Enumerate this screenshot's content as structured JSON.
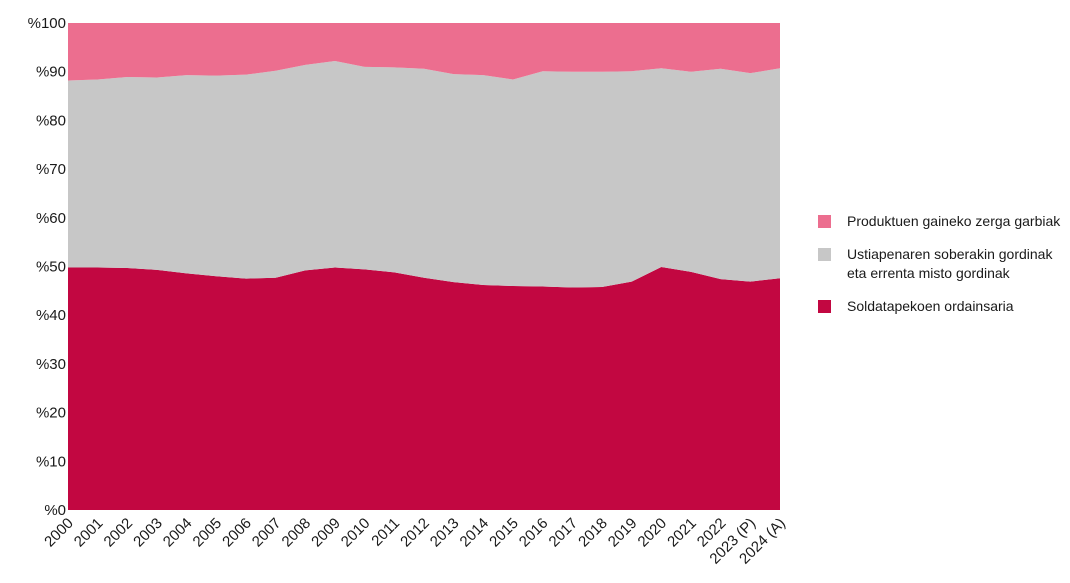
{
  "chart_data": {
    "type": "area",
    "stacked": true,
    "percent": true,
    "categories": [
      "2000",
      "2001",
      "2002",
      "2003",
      "2004",
      "2005",
      "2006",
      "2007",
      "2008",
      "2009",
      "2010",
      "2011",
      "2012",
      "2013",
      "2014",
      "2015",
      "2016",
      "2017",
      "2018",
      "2019",
      "2020",
      "2021",
      "2022",
      "2023 (P)",
      "2024 (A)"
    ],
    "series": [
      {
        "name": "Soldatapekoen ordainsaria",
        "color": "#c20741",
        "values": [
          49.8,
          49.8,
          49.7,
          49.3,
          48.6,
          48.0,
          47.5,
          47.7,
          49.2,
          49.8,
          49.4,
          48.8,
          47.7,
          46.8,
          46.2,
          46.0,
          45.9,
          45.7,
          45.8,
          46.9,
          49.9,
          48.9,
          47.4,
          46.9,
          47.6
        ]
      },
      {
        "name": "Ustiapenaren soberakin gordinak eta errenta misto gordinak",
        "color": "#c7c7c7",
        "values": [
          38.4,
          38.6,
          39.2,
          39.5,
          40.7,
          41.2,
          41.9,
          42.5,
          42.2,
          42.4,
          41.6,
          42.1,
          42.9,
          42.7,
          43.1,
          42.4,
          44.2,
          44.3,
          44.2,
          43.2,
          40.8,
          41.1,
          43.2,
          42.8,
          43.1
        ]
      },
      {
        "name": "Produktuen gaineko zerga garbiak",
        "color": "#ec6e8f",
        "values": [
          11.8,
          11.6,
          11.1,
          11.2,
          10.7,
          10.8,
          10.6,
          9.8,
          8.6,
          7.8,
          9.0,
          9.1,
          9.4,
          10.5,
          10.7,
          11.6,
          9.9,
          10.0,
          10.0,
          9.9,
          9.3,
          10.0,
          9.4,
          10.3,
          9.3
        ]
      }
    ],
    "ylim": [
      0,
      100
    ],
    "yticks": [
      "%0",
      "%10",
      "%20",
      "%30",
      "%40",
      "%50",
      "%60",
      "%70",
      "%80",
      "%90",
      "%100"
    ],
    "grid": false,
    "legend_position": "right"
  }
}
